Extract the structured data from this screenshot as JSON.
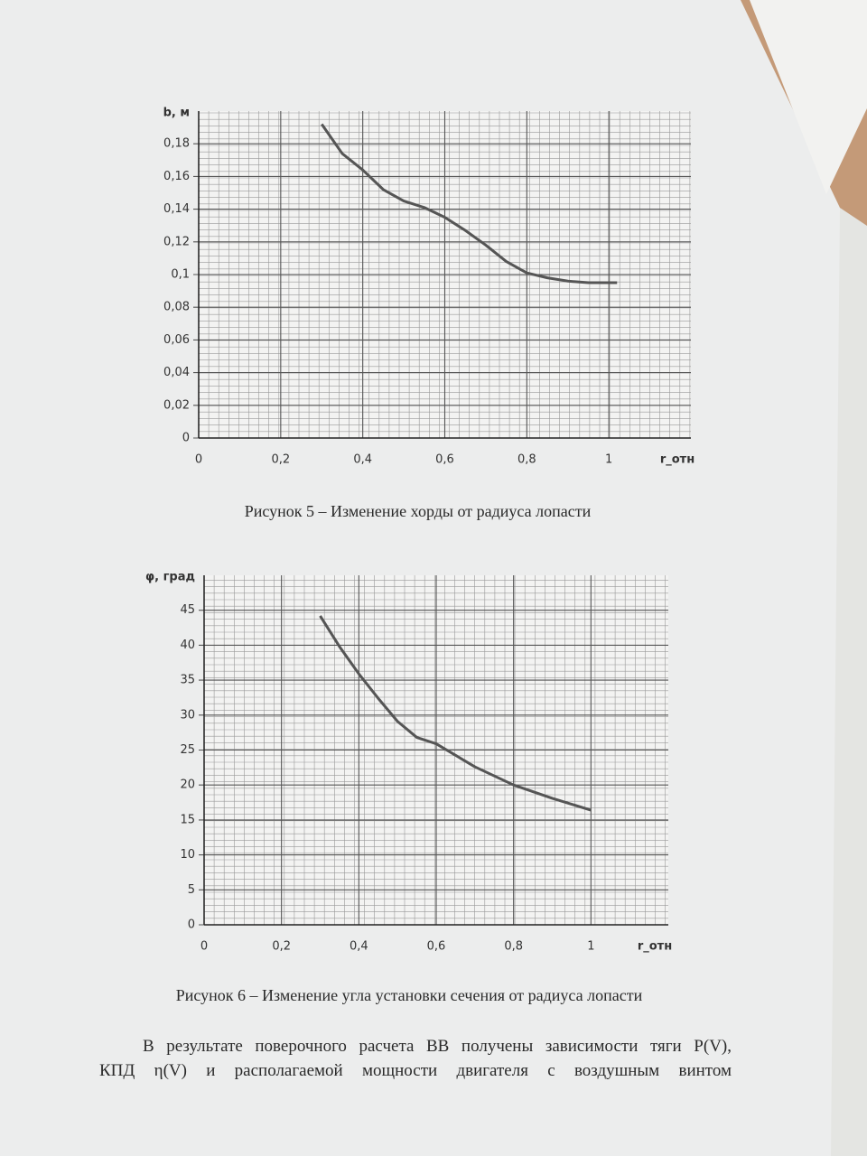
{
  "chart_data": [
    {
      "type": "line",
      "ylabel": "b, м",
      "xlabel": "r_отн",
      "caption": "Рисунок 5 – Изменение хорды от радиуса лопасти",
      "xlim": [
        0,
        1.2
      ],
      "ylim": [
        0,
        0.2
      ],
      "xticks": [
        0,
        {
          "value": 0.2,
          "label": "0,2"
        },
        {
          "value": 0.4,
          "label": "0,4"
        },
        {
          "value": 0.6,
          "label": "0,6"
        },
        {
          "value": 0.8,
          "label": "0,8"
        },
        1
      ],
      "yticks": [
        0,
        {
          "value": 0.02,
          "label": "0,02"
        },
        {
          "value": 0.04,
          "label": "0,04"
        },
        {
          "value": 0.06,
          "label": "0,06"
        },
        {
          "value": 0.08,
          "label": "0,08"
        },
        {
          "value": 0.1,
          "label": "0,1"
        },
        {
          "value": 0.12,
          "label": "0,12"
        },
        {
          "value": 0.14,
          "label": "0,14"
        },
        {
          "value": 0.16,
          "label": "0,16"
        },
        {
          "value": 0.18,
          "label": "0,18"
        }
      ],
      "grid": true,
      "x": [
        0.3,
        0.35,
        0.4,
        0.45,
        0.5,
        0.55,
        0.6,
        0.65,
        0.7,
        0.75,
        0.8,
        0.85,
        0.9,
        0.95,
        1.0,
        1.02
      ],
      "series": [
        {
          "color": "#555555",
          "values": [
            0.192,
            0.174,
            0.164,
            0.152,
            0.145,
            0.141,
            0.135,
            0.127,
            0.118,
            0.108,
            0.101,
            0.098,
            0.096,
            0.095,
            0.095,
            0.095
          ]
        }
      ]
    },
    {
      "type": "line",
      "ylabel": "φ, град",
      "xlabel": "r_отн",
      "caption": "Рисунок 6 – Изменение угла установки сечения от радиуса лопасти",
      "xlim": [
        0,
        1.2
      ],
      "ylim": [
        0,
        50
      ],
      "xticks": [
        0,
        {
          "value": 0.2,
          "label": "0,2"
        },
        {
          "value": 0.4,
          "label": "0,4"
        },
        {
          "value": 0.6,
          "label": "0,6"
        },
        {
          "value": 0.8,
          "label": "0,8"
        },
        1
      ],
      "yticks": [
        0,
        5,
        10,
        15,
        20,
        25,
        30,
        35,
        40,
        45
      ],
      "grid": true,
      "x": [
        0.3,
        0.35,
        0.4,
        0.45,
        0.5,
        0.55,
        0.6,
        0.7,
        0.8,
        0.9,
        1.0
      ],
      "series": [
        {
          "color": "#555555",
          "values": [
            44.2,
            39.8,
            35.9,
            32.4,
            29.1,
            26.8,
            25.9,
            22.6,
            20.0,
            18.1,
            16.4
          ]
        }
      ]
    }
  ],
  "paragraph": [
    "В результате поверочного расчета ВВ получены зависимости тяги P(V),",
    "КПД η(V) и располагаемой мощности двигателя с воздушным винтом"
  ]
}
